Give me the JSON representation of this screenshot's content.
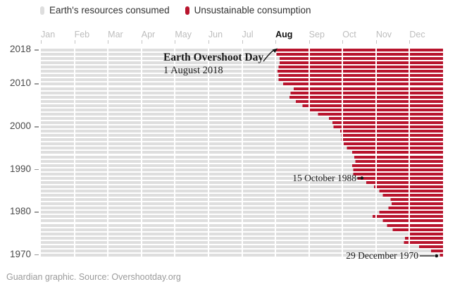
{
  "legend": {
    "items": [
      {
        "label": "Earth's resources consumed",
        "color": "#dedede"
      },
      {
        "label": "Unsustainable consumption",
        "color": "#b8142d"
      }
    ]
  },
  "x_axis": {
    "months": [
      "Jan",
      "Feb",
      "Mar",
      "Apr",
      "May",
      "Jun",
      "Jul",
      "Aug",
      "Sep",
      "Oct",
      "Nov",
      "Dec"
    ],
    "highlight": "Aug"
  },
  "y_axis": {
    "ticks": [
      "2018",
      "2010",
      "2000",
      "1990",
      "1980",
      "1970"
    ]
  },
  "annotations": {
    "title": "Earth Overshoot Day",
    "title_date": "1 August 2018",
    "mid": "15 October 1988",
    "bottom": "29 December 1970"
  },
  "footer": "Guardian graphic. Source: Overshootday.org",
  "chart_data": {
    "type": "bar",
    "orientation": "horizontal-stacked",
    "title": "Earth Overshoot Day",
    "xlabel_ticks": [
      "Jan",
      "Feb",
      "Mar",
      "Apr",
      "May",
      "Jun",
      "Jul",
      "Aug",
      "Sep",
      "Oct",
      "Nov",
      "Dec"
    ],
    "ylabel_ticks": [
      2018,
      2010,
      2000,
      1990,
      1980,
      1970
    ],
    "series": [
      {
        "name": "Earth's resources consumed",
        "color": "#dedede"
      },
      {
        "name": "Unsustainable consumption",
        "color": "#b8142d"
      }
    ],
    "rows": [
      {
        "year": 2018,
        "overshoot_date": "1 August",
        "month": 8,
        "day": 1
      },
      {
        "year": 2017,
        "overshoot_date": "2 August",
        "month": 8,
        "day": 2
      },
      {
        "year": 2016,
        "overshoot_date": "5 August",
        "month": 8,
        "day": 5
      },
      {
        "year": 2015,
        "overshoot_date": "5 August",
        "month": 8,
        "day": 5
      },
      {
        "year": 2014,
        "overshoot_date": "4 August",
        "month": 8,
        "day": 4
      },
      {
        "year": 2013,
        "overshoot_date": "3 August",
        "month": 8,
        "day": 3
      },
      {
        "year": 2012,
        "overshoot_date": "4 August",
        "month": 8,
        "day": 4
      },
      {
        "year": 2011,
        "overshoot_date": "4 August",
        "month": 8,
        "day": 4
      },
      {
        "year": 2010,
        "overshoot_date": "8 August",
        "month": 8,
        "day": 8
      },
      {
        "year": 2009,
        "overshoot_date": "18 August",
        "month": 8,
        "day": 18
      },
      {
        "year": 2008,
        "overshoot_date": "15 August",
        "month": 8,
        "day": 15
      },
      {
        "year": 2007,
        "overshoot_date": "14 August",
        "month": 8,
        "day": 14
      },
      {
        "year": 2006,
        "overshoot_date": "20 August",
        "month": 8,
        "day": 20
      },
      {
        "year": 2005,
        "overshoot_date": "26 August",
        "month": 8,
        "day": 26
      },
      {
        "year": 2004,
        "overshoot_date": "1 September",
        "month": 9,
        "day": 1
      },
      {
        "year": 2003,
        "overshoot_date": "9 September",
        "month": 9,
        "day": 9
      },
      {
        "year": 2002,
        "overshoot_date": "19 September",
        "month": 9,
        "day": 19
      },
      {
        "year": 2001,
        "overshoot_date": "22 September",
        "month": 9,
        "day": 22
      },
      {
        "year": 2000,
        "overshoot_date": "23 September",
        "month": 9,
        "day": 23
      },
      {
        "year": 1999,
        "overshoot_date": "29 September",
        "month": 9,
        "day": 29
      },
      {
        "year": 1998,
        "overshoot_date": "30 September",
        "month": 9,
        "day": 30
      },
      {
        "year": 1997,
        "overshoot_date": "30 September",
        "month": 9,
        "day": 30
      },
      {
        "year": 1996,
        "overshoot_date": "2 October",
        "month": 10,
        "day": 2
      },
      {
        "year": 1995,
        "overshoot_date": "5 October",
        "month": 10,
        "day": 5
      },
      {
        "year": 1994,
        "overshoot_date": "10 October",
        "month": 10,
        "day": 10
      },
      {
        "year": 1993,
        "overshoot_date": "12 October",
        "month": 10,
        "day": 12
      },
      {
        "year": 1992,
        "overshoot_date": "13 October",
        "month": 10,
        "day": 13
      },
      {
        "year": 1991,
        "overshoot_date": "10 October",
        "month": 10,
        "day": 10
      },
      {
        "year": 1990,
        "overshoot_date": "11 October",
        "month": 10,
        "day": 11
      },
      {
        "year": 1989,
        "overshoot_date": "11 October",
        "month": 10,
        "day": 11
      },
      {
        "year": 1988,
        "overshoot_date": "15 October",
        "month": 10,
        "day": 15
      },
      {
        "year": 1987,
        "overshoot_date": "23 October",
        "month": 10,
        "day": 23
      },
      {
        "year": 1986,
        "overshoot_date": "30 October",
        "month": 10,
        "day": 30
      },
      {
        "year": 1985,
        "overshoot_date": "4 November",
        "month": 11,
        "day": 4
      },
      {
        "year": 1984,
        "overshoot_date": "7 November",
        "month": 11,
        "day": 7
      },
      {
        "year": 1983,
        "overshoot_date": "14 November",
        "month": 11,
        "day": 14
      },
      {
        "year": 1982,
        "overshoot_date": "15 November",
        "month": 11,
        "day": 15
      },
      {
        "year": 1981,
        "overshoot_date": "12 November",
        "month": 11,
        "day": 12
      },
      {
        "year": 1980,
        "overshoot_date": "4 November",
        "month": 11,
        "day": 4
      },
      {
        "year": 1979,
        "overshoot_date": "29 October",
        "month": 10,
        "day": 29
      },
      {
        "year": 1978,
        "overshoot_date": "7 November",
        "month": 11,
        "day": 7
      },
      {
        "year": 1977,
        "overshoot_date": "11 November",
        "month": 11,
        "day": 11
      },
      {
        "year": 1976,
        "overshoot_date": "16 November",
        "month": 11,
        "day": 16
      },
      {
        "year": 1975,
        "overshoot_date": "30 November",
        "month": 11,
        "day": 30
      },
      {
        "year": 1974,
        "overshoot_date": "27 November",
        "month": 11,
        "day": 27
      },
      {
        "year": 1973,
        "overshoot_date": "26 November",
        "month": 11,
        "day": 26
      },
      {
        "year": 1972,
        "overshoot_date": "10 December",
        "month": 12,
        "day": 10
      },
      {
        "year": 1971,
        "overshoot_date": "21 December",
        "month": 12,
        "day": 21
      },
      {
        "year": 1970,
        "overshoot_date": "29 December",
        "month": 12,
        "day": 29
      }
    ]
  }
}
